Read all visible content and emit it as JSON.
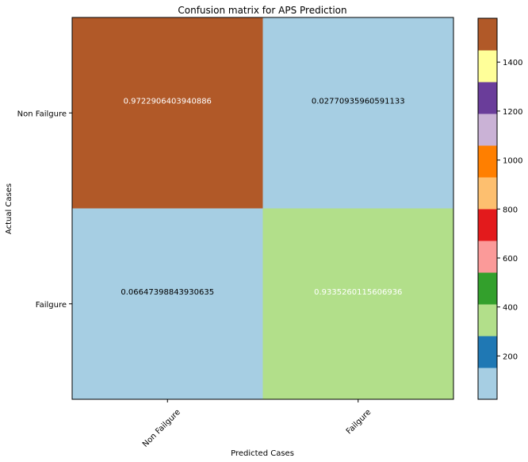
{
  "chart_data": {
    "type": "heatmap",
    "title": "Confusion matrix for APS Prediction",
    "xlabel": "Predicted Cases",
    "ylabel": "Actual Cases",
    "x_categories": [
      "Non Failgure",
      "Failgure"
    ],
    "y_categories": [
      "Non Failgure",
      "Failgure"
    ],
    "cells": [
      {
        "row": 0,
        "col": 0,
        "label": "0.9722906403940886",
        "count": 1579,
        "color": "#b15928",
        "text_color": "#ffffff"
      },
      {
        "row": 0,
        "col": 1,
        "label": "0.02770935960591133",
        "count": 45,
        "color": "#a6cee3",
        "text_color": "#000000"
      },
      {
        "row": 1,
        "col": 0,
        "label": "0.06647398843930635",
        "count": 23,
        "color": "#a6cee3",
        "text_color": "#000000"
      },
      {
        "row": 1,
        "col": 1,
        "label": "0.9335260115606936",
        "count": 323,
        "color": "#b2df8a",
        "text_color": "#ffffff"
      }
    ],
    "colorbar": {
      "colormap": "Paired",
      "range": [
        23,
        1579
      ],
      "ticks": [
        200,
        400,
        600,
        800,
        1000,
        1200,
        1400
      ],
      "tick_labels": [
        "200",
        "400",
        "600",
        "800",
        "1000",
        "1200",
        "1400"
      ],
      "colors": [
        "#a6cee3",
        "#1f78b4",
        "#b2df8a",
        "#33a02c",
        "#fb9a99",
        "#e31a1c",
        "#fdbf6f",
        "#ff7f00",
        "#cab2d6",
        "#6a3d9a",
        "#ffff99",
        "#b15928"
      ]
    }
  }
}
